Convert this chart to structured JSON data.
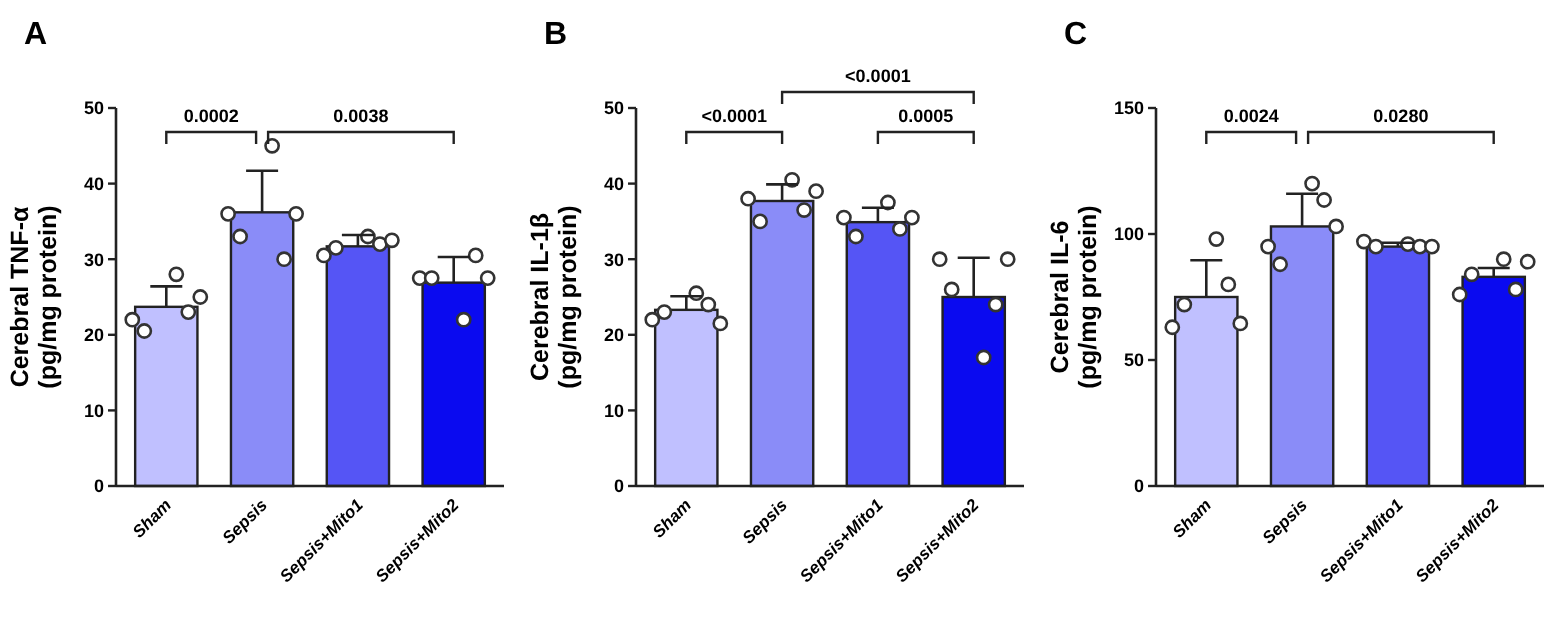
{
  "chart_data": [
    {
      "type": "bar",
      "title": "A",
      "ylabel": "Cerebral TNF-α\n(pg/mg protein)",
      "categories": [
        "Sham",
        "Sepsis",
        "Sepsis+Mito1",
        "Sepsis+Mito2"
      ],
      "ylim": [
        0,
        50
      ],
      "yticks": [
        0,
        10,
        20,
        30,
        40,
        50
      ],
      "grid": false,
      "marker": "circle",
      "annotations": [
        "0.0002",
        "0.0038"
      ],
      "series": [
        {
          "colors": [
            "#c0c0ff",
            "#8a8cf8",
            "#5555f5",
            "#0a0af0"
          ],
          "values": [
            23.7,
            36.2,
            31.7,
            26.9
          ],
          "errors": [
            [
              23.7,
              26.4
            ],
            [
              36.2,
              41.7
            ],
            [
              31.7,
              33.2
            ],
            [
              26.9,
              30.3
            ]
          ]
        },
        {
          "type": "scatter",
          "color": "#333333",
          "x": [
            "Sham",
            "Sepsis",
            "Sepsis+Mito1",
            "Sepsis+Mito2"
          ],
          "values": [
            22,
            36,
            30.5,
            27.5
          ]
        },
        {
          "type": "scatter",
          "color": "#333333",
          "x": [
            "Sham",
            "Sepsis",
            "Sepsis+Mito1",
            "Sepsis+Mito2"
          ],
          "values": [
            20.5,
            33,
            31.5,
            27.5
          ]
        },
        {
          "type": "scatter",
          "color": "#333333",
          "x": [
            "Sham",
            "Sepsis",
            "Sepsis+Mito1",
            "Sepsis+Mito2"
          ],
          "values": [
            28,
            45,
            33,
            22
          ]
        },
        {
          "type": "scatter",
          "color": "#333333",
          "x": [
            "Sham",
            "Sepsis",
            "Sepsis+Mito1",
            "Sepsis+Mito2"
          ],
          "values": [
            23,
            30,
            32,
            30.5
          ]
        },
        {
          "type": "scatter",
          "color": "#333333",
          "x": [
            "Sham",
            "Sepsis",
            "Sepsis+Mito1",
            "Sepsis+Mito2"
          ],
          "values": [
            25,
            36,
            32.5,
            27.5
          ]
        }
      ]
    },
    {
      "type": "bar",
      "title": "B",
      "ylabel": "Cerebral IL-1β\n(pg/mg protein)",
      "categories": [
        "Sham",
        "Sepsis",
        "Sepsis+Mito1",
        "Sepsis+Mito2"
      ],
      "ylim": [
        0,
        50
      ],
      "yticks": [
        0,
        10,
        20,
        30,
        40,
        50
      ],
      "grid": false,
      "marker": "circle",
      "annotations": [
        "<0.0001",
        "<0.0001",
        "0.0005"
      ],
      "series": [
        {
          "colors": [
            "#c0c0ff",
            "#8a8cf8",
            "#5555f5",
            "#0a0af0"
          ],
          "values": [
            23.3,
            37.7,
            34.9,
            25.0
          ],
          "errors": [
            [
              23.3,
              25.1
            ],
            [
              37.7,
              39.9
            ],
            [
              34.9,
              36.8
            ],
            [
              25.0,
              30.2
            ]
          ]
        },
        {
          "type": "scatter",
          "color": "#333333",
          "x": [
            "Sham",
            "Sepsis",
            "Sepsis+Mito1",
            "Sepsis+Mito2"
          ],
          "values": [
            22,
            38,
            35.5,
            30
          ]
        },
        {
          "type": "scatter",
          "color": "#333333",
          "x": [
            "Sham",
            "Sepsis",
            "Sepsis+Mito1",
            "Sepsis+Mito2"
          ],
          "values": [
            23,
            35,
            33,
            26
          ]
        },
        {
          "type": "scatter",
          "color": "#333333",
          "x": [
            "Sham",
            "Sepsis",
            "Sepsis+Mito1",
            "Sepsis+Mito2"
          ],
          "values": [
            25.5,
            40.5,
            37.5,
            17
          ]
        },
        {
          "type": "scatter",
          "color": "#333333",
          "x": [
            "Sham",
            "Sepsis",
            "Sepsis+Mito1",
            "Sepsis+Mito2"
          ],
          "values": [
            24,
            36.5,
            34,
            24
          ]
        },
        {
          "type": "scatter",
          "color": "#333333",
          "x": [
            "Sham",
            "Sepsis",
            "Sepsis+Mito1",
            "Sepsis+Mito2"
          ],
          "values": [
            21.5,
            39,
            35.5,
            30
          ]
        }
      ]
    },
    {
      "type": "bar",
      "title": "C",
      "ylabel": "Cerebral IL-6\n(pg/mg protein)",
      "categories": [
        "Sham",
        "Sepsis",
        "Sepsis+Mito1",
        "Sepsis+Mito2"
      ],
      "ylim": [
        0,
        150
      ],
      "yticks": [
        0,
        50,
        100,
        150
      ],
      "grid": false,
      "marker": "circle",
      "annotations": [
        "0.0024",
        "0.0280"
      ],
      "series": [
        {
          "colors": [
            "#c0c0ff",
            "#8a8cf8",
            "#5555f5",
            "#0a0af0"
          ],
          "values": [
            75,
            103,
            95,
            83
          ],
          "errors": [
            [
              75,
              89.6
            ],
            [
              103,
              116
            ],
            [
              95,
              96.5
            ],
            [
              83,
              86.5
            ]
          ]
        },
        {
          "type": "scatter",
          "color": "#333333",
          "x": [
            "Sham",
            "Sepsis",
            "Sepsis+Mito1",
            "Sepsis+Mito2"
          ],
          "values": [
            63,
            95,
            97,
            76
          ]
        },
        {
          "type": "scatter",
          "color": "#333333",
          "x": [
            "Sham",
            "Sepsis",
            "Sepsis+Mito1",
            "Sepsis+Mito2"
          ],
          "values": [
            72,
            88,
            95,
            84
          ]
        },
        {
          "type": "scatter",
          "color": "#333333",
          "x": [
            "Sham",
            "Sepsis",
            "Sepsis+Mito1",
            "Sepsis+Mito2"
          ],
          "values": [
            98,
            120,
            96,
            90
          ]
        },
        {
          "type": "scatter",
          "color": "#333333",
          "x": [
            "Sham",
            "Sepsis",
            "Sepsis+Mito1",
            "Sepsis+Mito2"
          ],
          "values": [
            80,
            113.5,
            95,
            78
          ]
        },
        {
          "type": "scatter",
          "color": "#333333",
          "x": [
            "Sham",
            "Sepsis",
            "Sepsis+Mito1",
            "Sepsis+Mito2"
          ],
          "values": [
            64.5,
            103,
            95,
            89
          ]
        }
      ]
    }
  ]
}
